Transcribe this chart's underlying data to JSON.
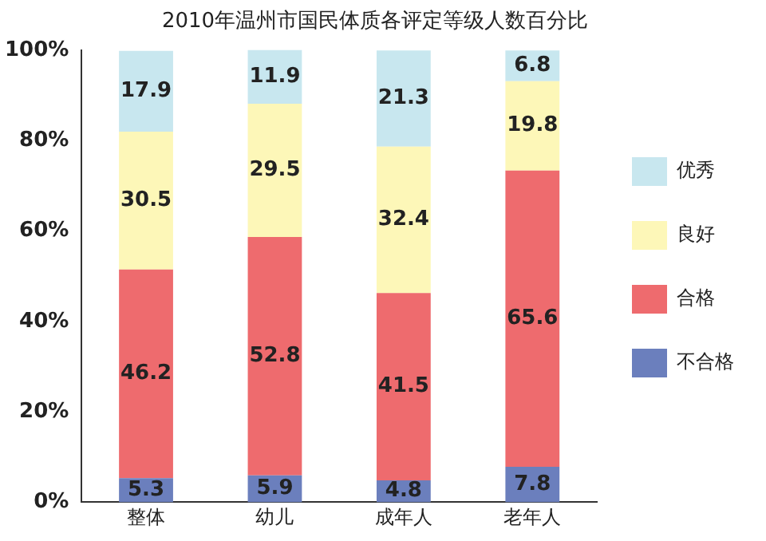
{
  "chart_data": {
    "type": "bar",
    "title": "2010年温州市国民体质各评定等级人数百分比",
    "categories": [
      "整体",
      "幼儿",
      "成年人",
      "老年人"
    ],
    "stacked": true,
    "series": [
      {
        "name": "不合格",
        "color": "#6b7fbd",
        "values": [
          5.3,
          5.9,
          4.8,
          7.8
        ]
      },
      {
        "name": "合格",
        "color": "#ee6b6e",
        "values": [
          46.2,
          52.8,
          41.5,
          65.6
        ]
      },
      {
        "name": "良好",
        "color": "#fdf7b8",
        "values": [
          30.5,
          29.5,
          32.4,
          19.8
        ]
      },
      {
        "name": "优秀",
        "color": "#c8e7ef",
        "values": [
          17.9,
          11.9,
          21.3,
          6.8
        ]
      }
    ],
    "ylim": [
      0,
      100
    ],
    "yticks": [
      {
        "value": 0,
        "label": "0%"
      },
      {
        "value": 20,
        "label": "20%"
      },
      {
        "value": 40,
        "label": "40%"
      },
      {
        "value": 60,
        "label": "60%"
      },
      {
        "value": 80,
        "label": "80%"
      },
      {
        "value": 100,
        "label": "100%"
      }
    ],
    "grid": false,
    "legend": "right",
    "data_labels": true
  }
}
